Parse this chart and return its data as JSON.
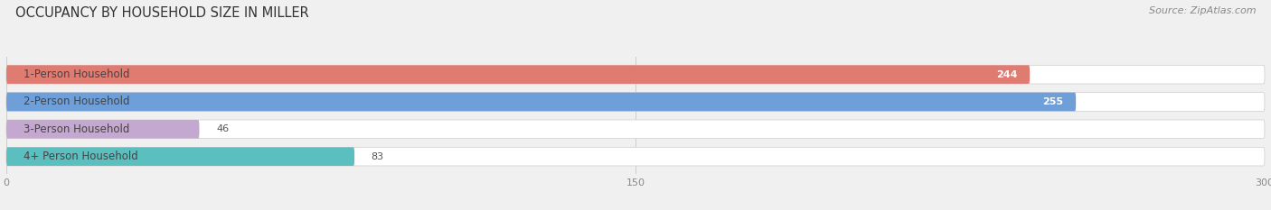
{
  "title": "OCCUPANCY BY HOUSEHOLD SIZE IN MILLER",
  "source": "Source: ZipAtlas.com",
  "categories": [
    "1-Person Household",
    "2-Person Household",
    "3-Person Household",
    "4+ Person Household"
  ],
  "values": [
    244,
    255,
    46,
    83
  ],
  "bar_colors": [
    "#e07b72",
    "#6f9fd8",
    "#c4a8d0",
    "#5bbfbf"
  ],
  "xlim": [
    0,
    300
  ],
  "xticks": [
    0,
    150,
    300
  ],
  "figsize": [
    14.06,
    2.33
  ],
  "dpi": 100,
  "title_fontsize": 10.5,
  "label_fontsize": 8.5,
  "value_fontsize": 8,
  "source_fontsize": 8,
  "bg_color": "#ffffff",
  "fig_bg_color": "#f0f0f0"
}
